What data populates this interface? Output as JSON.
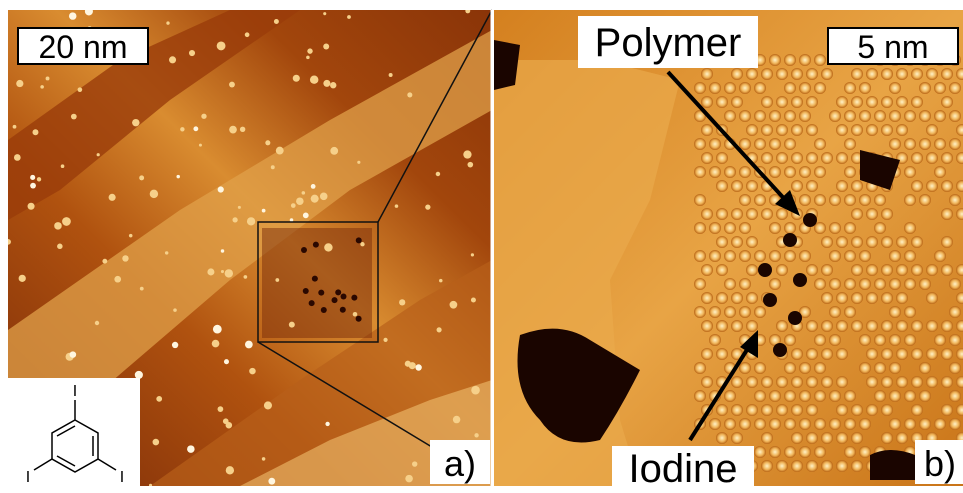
{
  "panels": [
    {
      "scale_bar": "20 nm",
      "label": "a)"
    },
    {
      "scale_bar": "5 nm",
      "label": "b)",
      "annotations": [
        "Polymer",
        "Iodine"
      ]
    }
  ],
  "molecule": {
    "atoms": [
      "I",
      "I",
      "I"
    ]
  }
}
